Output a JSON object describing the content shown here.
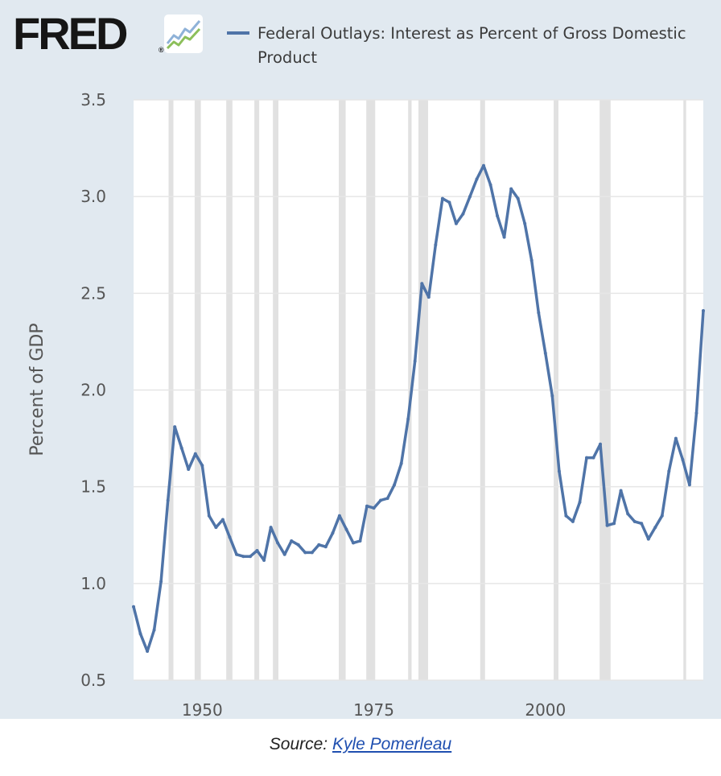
{
  "header": {
    "logo_text": "FRED",
    "logo_registered": "®",
    "legend_label": "Federal Outlays: Interest as Percent of Gross Domestic Product"
  },
  "footer": {
    "source_prefix": "Source:",
    "source_link": "Kyle Pomerleau"
  },
  "colors": {
    "line": "#4f74a8",
    "background": "#e1e9f0",
    "recession": "#e1e1e1",
    "grid": "#e6e6e6"
  },
  "chart_data": {
    "type": "line",
    "title": "Federal Outlays: Interest as Percent of Gross Domestic Product",
    "xlabel": "",
    "ylabel": "Percent of GDP",
    "xlim": [
      1940,
      2023
    ],
    "ylim": [
      0.5,
      3.5
    ],
    "yticks": [
      0.5,
      1.0,
      1.5,
      2.0,
      2.5,
      3.0,
      3.5
    ],
    "ytick_labels": [
      "0.5",
      "1.0",
      "1.5",
      "2.0",
      "2.5",
      "3.0",
      "3.5"
    ],
    "xticks": [
      1950,
      1975,
      2000
    ],
    "xtick_labels": [
      "1950",
      "1975",
      "2000"
    ],
    "recession_bands": [
      [
        1945.1,
        1945.8
      ],
      [
        1948.9,
        1949.8
      ],
      [
        1953.5,
        1954.4
      ],
      [
        1957.6,
        1958.3
      ],
      [
        1960.3,
        1961.1
      ],
      [
        1969.9,
        1970.9
      ],
      [
        1973.9,
        1975.2
      ],
      [
        1980.0,
        1980.5
      ],
      [
        1981.5,
        1982.9
      ],
      [
        1990.5,
        1991.2
      ],
      [
        2001.2,
        2001.9
      ],
      [
        2007.9,
        2009.5
      ],
      [
        2020.1,
        2020.5
      ]
    ],
    "series": [
      {
        "name": "Federal Outlays: Interest as Percent of Gross Domestic Product",
        "x": [
          1940,
          1941,
          1942,
          1943,
          1944,
          1945,
          1946,
          1947,
          1948,
          1949,
          1950,
          1951,
          1952,
          1953,
          1954,
          1955,
          1956,
          1957,
          1958,
          1959,
          1960,
          1961,
          1962,
          1963,
          1964,
          1965,
          1966,
          1967,
          1968,
          1969,
          1970,
          1971,
          1972,
          1973,
          1974,
          1975,
          1976,
          1977,
          1978,
          1979,
          1980,
          1981,
          1982,
          1983,
          1984,
          1985,
          1986,
          1987,
          1988,
          1989,
          1990,
          1991,
          1992,
          1993,
          1994,
          1995,
          1996,
          1997,
          1998,
          1999,
          2000,
          2001,
          2002,
          2003,
          2004,
          2005,
          2006,
          2007,
          2008,
          2009,
          2010,
          2011,
          2012,
          2013,
          2014,
          2015,
          2016,
          2017,
          2018,
          2019,
          2020,
          2021,
          2022,
          2023
        ],
        "values": [
          0.88,
          0.74,
          0.65,
          0.76,
          1.01,
          1.43,
          1.81,
          1.7,
          1.59,
          1.67,
          1.61,
          1.35,
          1.29,
          1.33,
          1.24,
          1.15,
          1.14,
          1.14,
          1.17,
          1.12,
          1.29,
          1.21,
          1.15,
          1.22,
          1.2,
          1.16,
          1.16,
          1.2,
          1.19,
          1.26,
          1.35,
          1.28,
          1.21,
          1.22,
          1.4,
          1.39,
          1.43,
          1.44,
          1.51,
          1.62,
          1.85,
          2.15,
          2.55,
          2.48,
          2.75,
          2.99,
          2.97,
          2.86,
          2.91,
          3.0,
          3.09,
          3.16,
          3.06,
          2.9,
          2.79,
          3.04,
          2.99,
          2.86,
          2.67,
          2.4,
          2.19,
          1.97,
          1.58,
          1.35,
          1.32,
          1.42,
          1.65,
          1.65,
          1.72,
          1.3,
          1.31,
          1.48,
          1.36,
          1.32,
          1.31,
          1.23,
          1.29,
          1.35,
          1.58,
          1.75,
          1.64,
          1.51,
          1.88,
          2.41
        ]
      }
    ]
  }
}
